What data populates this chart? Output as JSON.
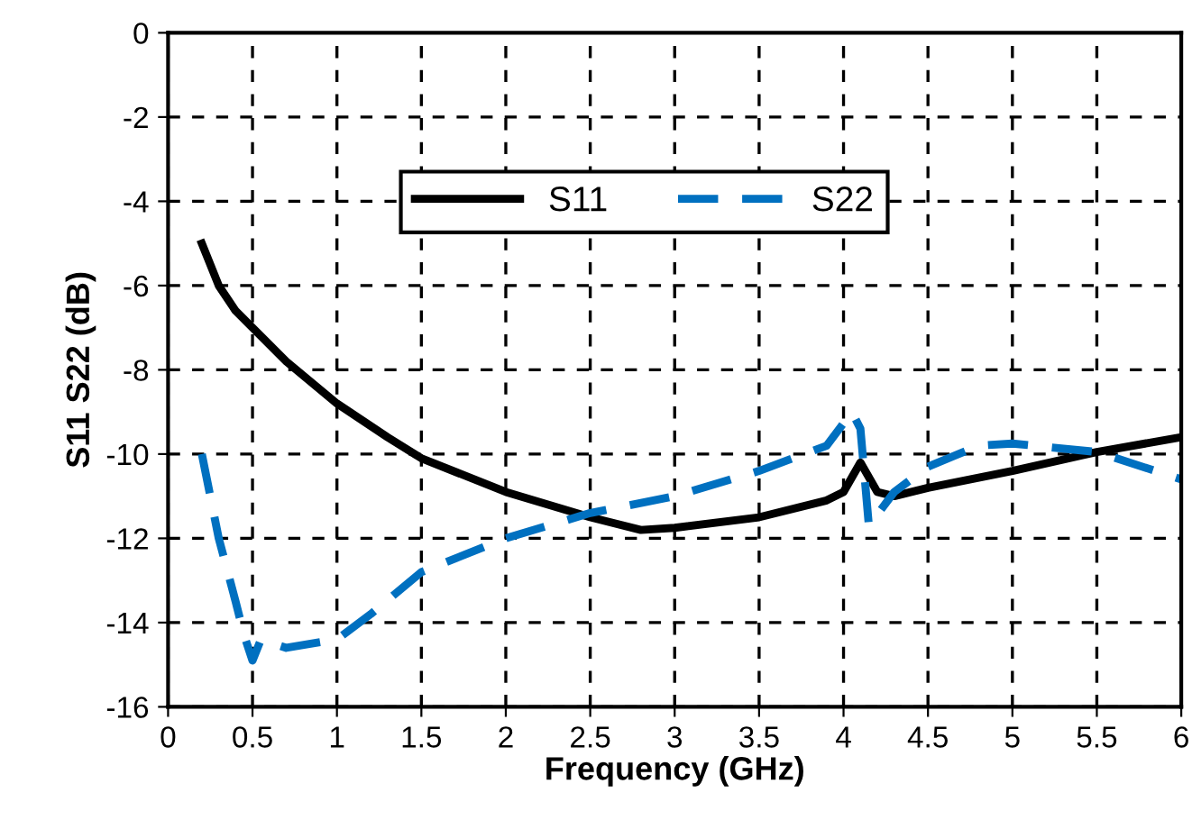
{
  "chart_data": {
    "type": "line",
    "xlabel": "Frequency (GHz)",
    "ylabel": "S11 S22 (dB)",
    "xlim": [
      0,
      6
    ],
    "xticks": [
      0,
      0.5,
      1,
      1.5,
      2,
      2.5,
      3,
      3.5,
      4,
      4.5,
      5,
      5.5,
      6
    ],
    "ylim": [
      -16,
      0
    ],
    "yticks": [
      -16,
      -14,
      -12,
      -10,
      -8,
      -6,
      -4,
      -2,
      0
    ],
    "grid": true,
    "legend": "top",
    "marker": "none",
    "series": [
      {
        "name": "S11",
        "color": "#000000",
        "line_style": "solid",
        "x": [
          0.2,
          0.3,
          0.4,
          0.5,
          0.7,
          1.0,
          1.3,
          1.5,
          2.0,
          2.5,
          2.8,
          3.0,
          3.5,
          3.9,
          4.0,
          4.1,
          4.2,
          4.3,
          4.5,
          5.0,
          5.5,
          6.0
        ],
        "values": [
          -5.0,
          -6.0,
          -6.6,
          -7.0,
          -7.8,
          -8.8,
          -9.6,
          -10.1,
          -10.9,
          -11.5,
          -11.8,
          -11.75,
          -11.5,
          -11.1,
          -10.9,
          -10.2,
          -10.9,
          -11.0,
          -10.8,
          -10.4,
          -9.95,
          -9.6
        ]
      },
      {
        "name": "S22",
        "color": "#0070c0",
        "line_style": "dashed",
        "x": [
          0.2,
          0.3,
          0.4,
          0.45,
          0.5,
          0.55,
          0.7,
          1.0,
          1.2,
          1.5,
          2.0,
          2.5,
          3.0,
          3.5,
          3.9,
          4.05,
          4.1,
          4.15,
          4.3,
          4.5,
          4.8,
          5.0,
          5.5,
          6.0
        ],
        "values": [
          -10.0,
          -12.0,
          -13.5,
          -14.3,
          -14.9,
          -14.4,
          -14.6,
          -14.4,
          -13.8,
          -12.8,
          -12.0,
          -11.4,
          -11.0,
          -10.4,
          -9.8,
          -9.0,
          -9.4,
          -11.7,
          -10.9,
          -10.3,
          -9.8,
          -9.75,
          -9.95,
          -10.6
        ]
      }
    ]
  }
}
